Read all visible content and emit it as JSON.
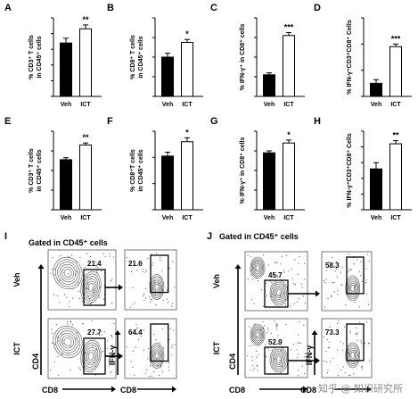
{
  "chart_data": [
    {
      "type": "bar",
      "panel": "A",
      "categories": [
        "Veh",
        "ICT"
      ],
      "values": [
        34,
        43
      ],
      "errors": [
        3,
        2.5
      ],
      "significance": "**",
      "ylabel_lines": [
        "% CD3⁺ T cells",
        "in CD45⁺ cells"
      ],
      "ylim": [
        0,
        50
      ],
      "yticks": [
        0,
        10,
        20,
        30,
        40,
        50
      ]
    },
    {
      "type": "bar",
      "panel": "B",
      "categories": [
        "Veh",
        "ICT"
      ],
      "values": [
        20,
        27.5
      ],
      "errors": [
        2,
        1.5
      ],
      "significance": "*",
      "ylabel_lines": [
        "% CD8⁺ T cells",
        "in CD45⁺ cells"
      ],
      "ylim": [
        0,
        40
      ],
      "yticks": [
        0,
        10,
        20,
        30,
        40
      ]
    },
    {
      "type": "bar",
      "panel": "C",
      "categories": [
        "Veh",
        "ICT"
      ],
      "values": [
        22,
        62
      ],
      "errors": [
        2,
        3
      ],
      "significance": "***",
      "ylabel_lines": [
        "% IFN-γ⁺ in CD8⁺ cells"
      ],
      "ylim": [
        0,
        80
      ],
      "yticks": [
        0,
        20,
        40,
        60,
        80
      ]
    },
    {
      "type": "bar",
      "panel": "D",
      "categories": [
        "Veh",
        "ICT"
      ],
      "values": [
        2.5,
        9.5
      ],
      "errors": [
        0.7,
        0.5
      ],
      "significance": "***",
      "ylabel_lines": [
        "% IFN-γ⁺CD3⁺CD8⁺ Cells"
      ],
      "ylim": [
        0,
        15
      ],
      "yticks": [
        0,
        5,
        10,
        15
      ]
    },
    {
      "type": "bar",
      "panel": "E",
      "categories": [
        "Veh",
        "ICT"
      ],
      "values": [
        51,
        66
      ],
      "errors": [
        2,
        2
      ],
      "significance": "**",
      "ylabel_lines": [
        "% CD3⁺ T cells",
        "in CD45⁺ cells"
      ],
      "ylim": [
        0,
        80
      ],
      "yticks": [
        0,
        20,
        40,
        60,
        80
      ]
    },
    {
      "type": "bar",
      "panel": "F",
      "categories": [
        "Veh",
        "ICT"
      ],
      "values": [
        41,
        52
      ],
      "errors": [
        3,
        3
      ],
      "significance": "*",
      "ylabel_lines": [
        "% CD8⁺T cells",
        "in CD45⁺ cells"
      ],
      "ylim": [
        0,
        60
      ],
      "yticks": [
        0,
        20,
        40,
        60
      ]
    },
    {
      "type": "bar",
      "panel": "G",
      "categories": [
        "Veh",
        "ICT"
      ],
      "values": [
        58,
        68
      ],
      "errors": [
        2,
        3
      ],
      "significance": "*",
      "ylabel_lines": [
        "% IFN-γ⁺ in CD8⁺ cells"
      ],
      "ylim": [
        0,
        80
      ],
      "yticks": [
        0,
        20,
        40,
        60,
        80
      ]
    },
    {
      "type": "bar",
      "panel": "H",
      "categories": [
        "Veh",
        "ICT"
      ],
      "values": [
        13,
        21
      ],
      "errors": [
        2,
        1
      ],
      "significance": "**",
      "ylabel_lines": [
        "% IFN-γ⁺CD3⁺CD8⁺ Cells"
      ],
      "ylim": [
        0,
        25
      ],
      "yticks": [
        0,
        5,
        10,
        15,
        20,
        25
      ]
    }
  ],
  "flow": [
    {
      "panel": "I",
      "title": "Gated in CD45⁺ cells",
      "rows": [
        {
          "label": "Veh",
          "gate1": "21.4",
          "gate2": "21.6"
        },
        {
          "label": "ICT",
          "gate1": "27.7",
          "gate2": "64.4"
        }
      ],
      "y1": "CD4",
      "x1": "CD8",
      "y2": "IFN-γ",
      "x2": "CD8"
    },
    {
      "panel": "J",
      "title": "Gated in CD45⁺ cells",
      "rows": [
        {
          "label": "Veh",
          "gate1": "45.7",
          "gate2": "58.3"
        },
        {
          "label": "ICT",
          "gate1": "52.9",
          "gate2": "73.3"
        }
      ],
      "y1": "CD4",
      "x1": "CD8",
      "y2": "IFN-γ",
      "x2": "CD8"
    }
  ],
  "watermark": "知乎 @ 知识研究所",
  "colors": {
    "veh_bar": "#000000",
    "ict_bar": "#ffffff",
    "axis": "#000000",
    "gate": "#000000",
    "dot": "#555555"
  }
}
